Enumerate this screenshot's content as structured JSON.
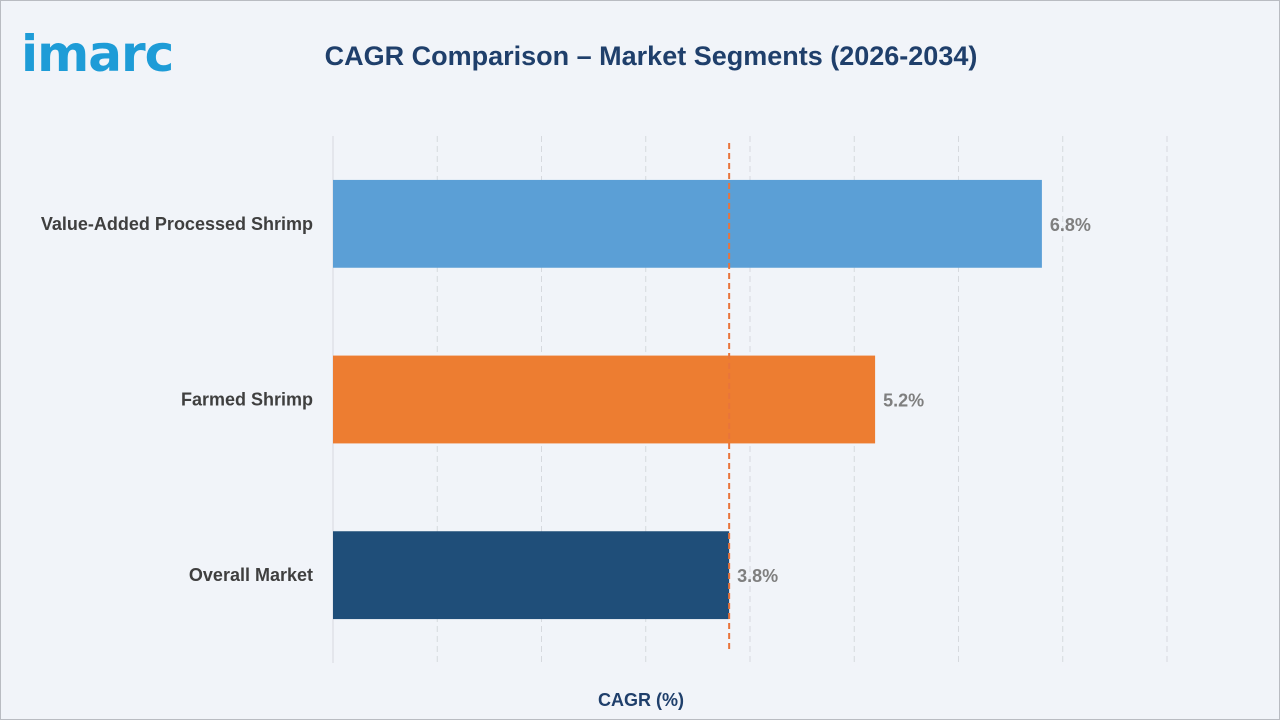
{
  "header": {
    "logo_text": "imarc",
    "title": "CAGR Comparison – Market Segments (2026-2034)"
  },
  "colors": {
    "background": "#f1f4f9",
    "title": "#1f3f6b",
    "logo": "#1e9cd7",
    "reference_line": "#e8743b"
  },
  "chart_data": {
    "type": "bar",
    "orientation": "horizontal",
    "title": "CAGR Comparison – Market Segments (2026-2034)",
    "xlabel": "CAGR (%)",
    "ylabel": "",
    "categories": [
      "Value-Added Processed Shrimp",
      "Farmed Shrimp",
      "Overall Market"
    ],
    "values": [
      6.8,
      5.2,
      3.8
    ],
    "value_labels": [
      "6.8%",
      "5.2%",
      "3.8%"
    ],
    "bar_colors": [
      "#5b9fd6",
      "#ed7d31",
      "#1f4e79"
    ],
    "xlim": [
      0,
      8
    ],
    "grid": "vertical-dashed",
    "reference_line": {
      "value": 3.8,
      "style": "dashed",
      "color": "#e8743b"
    }
  }
}
